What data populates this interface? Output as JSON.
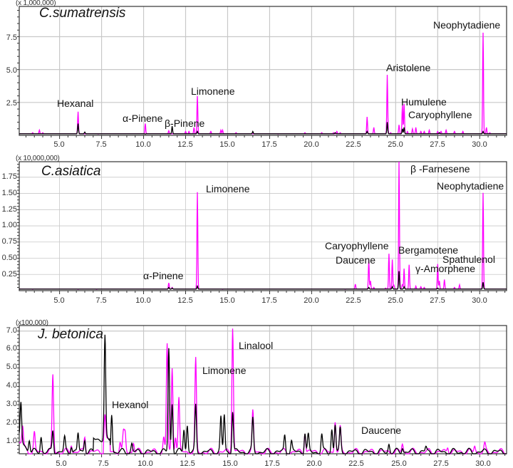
{
  "figure": {
    "colors": {
      "series_a": "#ff00ff",
      "series_b": "#000000",
      "grid": "#c8c8c8",
      "axis": "#333333"
    }
  },
  "chart_data": [
    {
      "type": "line",
      "title": "C.sumatrensis",
      "xlabel": "",
      "ylabel": "",
      "y_multiplier": "(x 1,000,000)",
      "xlim": [
        2.6,
        31.6
      ],
      "ylim": [
        0,
        9.8
      ],
      "x_ticks": [
        "5.0",
        "7.5",
        "10.0",
        "12.5",
        "15.0",
        "17.5",
        "20.0",
        "22.5",
        "25.0",
        "27.5",
        "30.0"
      ],
      "y_ticks": [
        "2.5",
        "5.0",
        "7.5"
      ],
      "grid": true,
      "legend": "none",
      "series": [
        {
          "name": "magenta trace",
          "color": "#ff00ff",
          "peaks": [
            [
              3.4,
              0.2
            ],
            [
              3.8,
              0.4
            ],
            [
              4.0,
              0.2
            ],
            [
              6.1,
              1.8
            ],
            [
              7.3,
              0.1
            ],
            [
              10.1,
              0.9
            ],
            [
              11.5,
              0.35
            ],
            [
              12.5,
              0.3
            ],
            [
              12.7,
              0.3
            ],
            [
              13.0,
              0.6
            ],
            [
              13.2,
              3.0
            ],
            [
              14.0,
              0.3
            ],
            [
              14.6,
              0.4
            ],
            [
              14.7,
              0.4
            ],
            [
              15.5,
              0.2
            ],
            [
              18.0,
              0.1
            ],
            [
              19.6,
              0.2
            ],
            [
              20.6,
              0.2
            ],
            [
              21.3,
              0.2
            ],
            [
              21.5,
              0.3
            ],
            [
              21.7,
              0.2
            ],
            [
              23.3,
              1.4
            ],
            [
              23.7,
              0.6
            ],
            [
              24.5,
              4.6
            ],
            [
              24.7,
              0.2
            ],
            [
              25.2,
              0.8
            ],
            [
              25.4,
              2.3
            ],
            [
              25.5,
              2.4
            ],
            [
              25.7,
              0.3
            ],
            [
              26.0,
              0.5
            ],
            [
              26.2,
              0.6
            ],
            [
              26.5,
              0.3
            ],
            [
              26.7,
              0.3
            ],
            [
              27.0,
              0.4
            ],
            [
              27.5,
              0.3
            ],
            [
              27.7,
              0.3
            ],
            [
              28.0,
              0.4
            ],
            [
              28.5,
              0.3
            ],
            [
              29.0,
              0.3
            ],
            [
              30.2,
              7.8
            ],
            [
              30.4,
              0.6
            ],
            [
              30.6,
              0.2
            ]
          ]
        },
        {
          "name": "black trace",
          "color": "#000000",
          "peaks": [
            [
              6.1,
              0.9
            ],
            [
              6.5,
              0.25
            ],
            [
              10.1,
              0.1
            ],
            [
              11.7,
              0.7
            ],
            [
              13.2,
              0.3
            ],
            [
              16.5,
              0.3
            ],
            [
              21.4,
              0.2
            ],
            [
              23.3,
              0.3
            ],
            [
              24.5,
              1.0
            ],
            [
              25.4,
              0.5
            ],
            [
              25.5,
              0.6
            ],
            [
              27.6,
              0.2
            ],
            [
              30.2,
              0.3
            ]
          ]
        }
      ],
      "annotations": [
        {
          "text": "Hexanal",
          "x": 6.1
        },
        {
          "text": "α-Pinene",
          "x": 10.1
        },
        {
          "text": "β-Pinene",
          "x": 11.7
        },
        {
          "text": "Limonene",
          "x": 13.2
        },
        {
          "text": "Aristolene",
          "x": 24.5
        },
        {
          "text": "Humulene",
          "x": 25.4
        },
        {
          "text": "Caryophyllene",
          "x": 25.5
        },
        {
          "text": "Neophytadiene",
          "x": 30.2
        }
      ]
    },
    {
      "type": "line",
      "title": "C.asiatica",
      "xlabel": "",
      "ylabel": "",
      "y_multiplier": "(x 10,000,000)",
      "xlim": [
        2.6,
        31.6
      ],
      "ylim": [
        0,
        1.99
      ],
      "x_ticks": [
        "5.0",
        "7.5",
        "10.0",
        "12.5",
        "15.0",
        "17.5",
        "20.0",
        "22.5",
        "25.0",
        "27.5",
        "30.0"
      ],
      "y_ticks": [
        "0.25",
        "0.50",
        "0.75",
        "1.00",
        "1.25",
        "1.50",
        "1.75"
      ],
      "grid": true,
      "legend": "none",
      "series": [
        {
          "name": "magenta trace",
          "color": "#ff00ff",
          "peaks": [
            [
              3.4,
              0.02
            ],
            [
              6.1,
              0.02
            ],
            [
              7.2,
              0.02
            ],
            [
              11.5,
              0.12
            ],
            [
              11.7,
              0.05
            ],
            [
              13.2,
              1.52
            ],
            [
              14.7,
              0.02
            ],
            [
              22.0,
              0.02
            ],
            [
              22.6,
              0.1
            ],
            [
              23.4,
              0.47
            ],
            [
              23.5,
              0.15
            ],
            [
              23.7,
              0.05
            ],
            [
              24.4,
              0.04
            ],
            [
              24.6,
              0.57
            ],
            [
              24.8,
              0.48
            ],
            [
              24.9,
              0.08
            ],
            [
              25.2,
              2.0
            ],
            [
              25.4,
              0.1
            ],
            [
              25.5,
              0.34
            ],
            [
              25.8,
              0.4
            ],
            [
              26.2,
              0.07
            ],
            [
              26.5,
              0.06
            ],
            [
              26.7,
              0.05
            ],
            [
              27.5,
              0.41
            ],
            [
              27.6,
              0.15
            ],
            [
              27.9,
              0.17
            ],
            [
              28.5,
              0.05
            ],
            [
              28.8,
              0.09
            ],
            [
              30.2,
              1.51
            ]
          ]
        },
        {
          "name": "black trace",
          "color": "#000000",
          "peaks": [
            [
              11.5,
              0.05
            ],
            [
              11.7,
              0.04
            ],
            [
              13.2,
              0.07
            ],
            [
              23.4,
              0.05
            ],
            [
              24.8,
              0.06
            ],
            [
              25.2,
              0.3
            ],
            [
              25.5,
              0.06
            ],
            [
              27.5,
              0.04
            ],
            [
              30.2,
              0.13
            ]
          ]
        }
      ],
      "annotations": [
        {
          "text": "α-Pinene",
          "x": 11.5
        },
        {
          "text": "Limonene",
          "x": 13.2
        },
        {
          "text": "Caryophyllene",
          "x": 24.6
        },
        {
          "text": "Daucene",
          "x": 23.4
        },
        {
          "text": "β -Farnesene",
          "x": 25.2
        },
        {
          "text": "Bergamotene",
          "x": 24.8
        },
        {
          "text": "Spathulenol",
          "x": 27.5
        },
        {
          "text": "γ-Amorphene",
          "x": 25.8
        },
        {
          "text": "Neophytadiene",
          "x": 30.2
        }
      ]
    },
    {
      "type": "line",
      "title": "J. betonica",
      "xlabel": "",
      "ylabel": "",
      "y_multiplier": "(x100,000)",
      "xlim": [
        2.6,
        31.6
      ],
      "ylim": [
        0.35,
        7.3
      ],
      "x_ticks": [
        "5.0",
        "7.5",
        "10.0",
        "12.5",
        "15.0",
        "17.5",
        "20.0",
        "22.5",
        "25.0",
        "27.5",
        "30.0"
      ],
      "y_ticks": [
        "1.0",
        "2.0",
        "3.0",
        "4.0",
        "5.0",
        "6.0",
        "7.0"
      ],
      "grid": true,
      "legend": "none",
      "series": [
        {
          "name": "magenta trace",
          "color": "#ff00ff",
          "peaks": [
            [
              2.8,
              1.5
            ],
            [
              3.5,
              1.45
            ],
            [
              4.6,
              4.6
            ],
            [
              5.7,
              0.9
            ],
            [
              6.5,
              1.3
            ],
            [
              7.7,
              1.9
            ],
            [
              8.6,
              1.0
            ],
            [
              8.8,
              1.4
            ],
            [
              8.9,
              1.45
            ],
            [
              9.4,
              1.0
            ],
            [
              11.2,
              1.2
            ],
            [
              11.4,
              6.3
            ],
            [
              11.7,
              5.0
            ],
            [
              11.9,
              1.4
            ],
            [
              12.1,
              3.3
            ],
            [
              13.1,
              5.4
            ],
            [
              15.3,
              7.3
            ],
            [
              16.5,
              2.6
            ],
            [
              19.6,
              1.6
            ],
            [
              21.4,
              2.2
            ],
            [
              21.7,
              1.7
            ],
            [
              25.4,
              0.9
            ],
            [
              28.1,
              0.8
            ],
            [
              29.7,
              0.8
            ],
            [
              30.3,
              0.8
            ]
          ]
        },
        {
          "name": "black trace",
          "color": "#000000",
          "peaks": [
            [
              2.7,
              2.5
            ],
            [
              3.2,
              1.2
            ],
            [
              3.9,
              1.3
            ],
            [
              4.6,
              1.65
            ],
            [
              5.3,
              1.2
            ],
            [
              5.7,
              0.85
            ],
            [
              6.1,
              1.45
            ],
            [
              6.5,
              1.2
            ],
            [
              7.7,
              6.1
            ],
            [
              8.1,
              2.55
            ],
            [
              9.3,
              0.9
            ],
            [
              11.5,
              6.1
            ],
            [
              11.7,
              3.1
            ],
            [
              12.4,
              1.75
            ],
            [
              12.6,
              1.9
            ],
            [
              13.1,
              2.9
            ],
            [
              14.6,
              2.3
            ],
            [
              14.8,
              2.45
            ],
            [
              15.3,
              2.7
            ],
            [
              16.5,
              2.2
            ],
            [
              18.4,
              1.35
            ],
            [
              18.8,
              1.0
            ],
            [
              19.6,
              1.55
            ],
            [
              19.8,
              1.3
            ],
            [
              20.6,
              1.4
            ],
            [
              21.2,
              1.7
            ],
            [
              21.4,
              1.95
            ],
            [
              21.7,
              1.65
            ],
            [
              24.6,
              0.9
            ],
            [
              25.4,
              0.75
            ],
            [
              26.8,
              0.7
            ]
          ]
        }
      ],
      "annotations": [
        {
          "text": "Hexanol",
          "x": 8.1
        },
        {
          "text": "Limonene",
          "x": 13.1
        },
        {
          "text": "Linalool",
          "x": 15.3
        },
        {
          "text": "Daucene",
          "x": 24.6
        }
      ]
    }
  ]
}
